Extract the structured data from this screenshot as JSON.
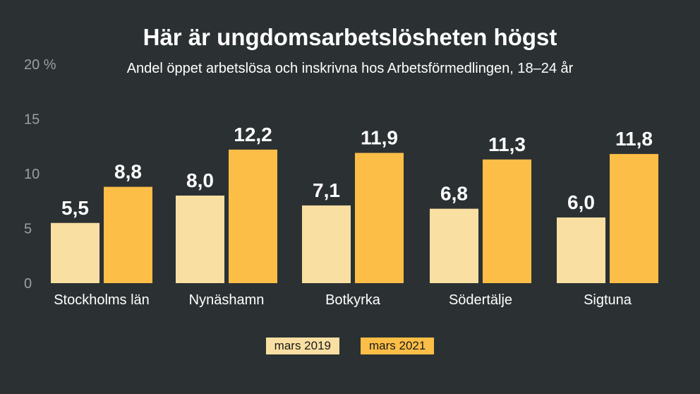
{
  "title": "Här är ungdomsarbetslösheten högst",
  "subtitle": "Andel öppet arbetslösa och inskrivna hos Arbetsförmedlingen, 18–24 år",
  "colors": {
    "background": "#2b3133",
    "mars_2019": "#f9dfa2",
    "mars_2021": "#fcbe46",
    "axis_text": "#9aa0a2",
    "text": "#ffffff"
  },
  "chart_data": {
    "type": "bar",
    "categories": [
      "Stockholms län",
      "Nynäshamn",
      "Botkyrka",
      "Södertälje",
      "Sigtuna"
    ],
    "series": [
      {
        "name": "mars 2019",
        "values": [
          5.5,
          8.0,
          7.1,
          6.8,
          6.0
        ],
        "labels": [
          "5,5",
          "8,0",
          "7,1",
          "6,8",
          "6,0"
        ]
      },
      {
        "name": "mars 2021",
        "values": [
          8.8,
          12.2,
          11.9,
          11.3,
          11.8
        ],
        "labels": [
          "8,8",
          "12,2",
          "11,9",
          "11,3",
          "11,8"
        ]
      }
    ],
    "ylim": [
      0,
      20
    ],
    "yticks": [
      0,
      5,
      10,
      15,
      20
    ],
    "ytick_labels": [
      "0",
      "5",
      "10",
      "15",
      "20 %"
    ],
    "grid": false,
    "legend_position": "bottom"
  }
}
